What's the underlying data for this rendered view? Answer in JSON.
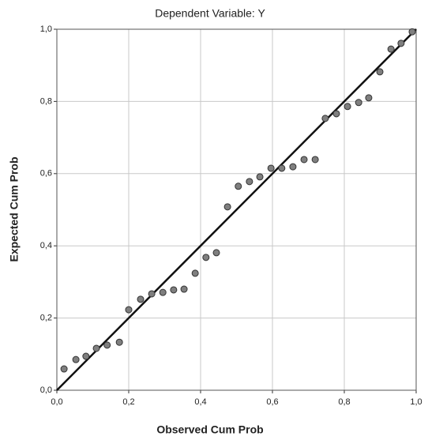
{
  "chart_data": {
    "type": "scatter",
    "title": "Dependent Variable: Y",
    "x_label": "Observed Cum Prob",
    "y_label": "Expected Cum Prob",
    "xlim": [
      0,
      1
    ],
    "ylim": [
      0,
      1
    ],
    "xticks": [
      {
        "value": 0,
        "label": "0,0"
      },
      {
        "value": 0.2,
        "label": "0,2"
      },
      {
        "value": 0.4,
        "label": "0,4"
      },
      {
        "value": 0.6,
        "label": "0,6"
      },
      {
        "value": 0.8,
        "label": "0,8"
      },
      {
        "value": 1,
        "label": "1,0"
      }
    ],
    "yticks": [
      {
        "value": 0,
        "label": "0,0"
      },
      {
        "value": 0.2,
        "label": "0,2"
      },
      {
        "value": 0.4,
        "label": "0,4"
      },
      {
        "value": 0.6,
        "label": "0,6"
      },
      {
        "value": 0.8,
        "label": "0,8"
      },
      {
        "value": 1,
        "label": "1,0"
      }
    ],
    "grid": true,
    "color": "#7f7f7f",
    "x": [
      0.02,
      0.053,
      0.081,
      0.11,
      0.14,
      0.174,
      0.2,
      0.233,
      0.264,
      0.295,
      0.325,
      0.354,
      0.385,
      0.415,
      0.444,
      0.475,
      0.505,
      0.536,
      0.565,
      0.596,
      0.626,
      0.657,
      0.688,
      0.719,
      0.747,
      0.778,
      0.809,
      0.84,
      0.868,
      0.899,
      0.93,
      0.958,
      0.989
    ],
    "values": [
      0.059,
      0.085,
      0.094,
      0.116,
      0.125,
      0.133,
      0.223,
      0.252,
      0.267,
      0.271,
      0.278,
      0.28,
      0.324,
      0.368,
      0.381,
      0.508,
      0.565,
      0.578,
      0.591,
      0.615,
      0.615,
      0.619,
      0.639,
      0.639,
      0.753,
      0.766,
      0.786,
      0.797,
      0.81,
      0.882,
      0.945,
      0.961,
      0.993
    ]
  }
}
